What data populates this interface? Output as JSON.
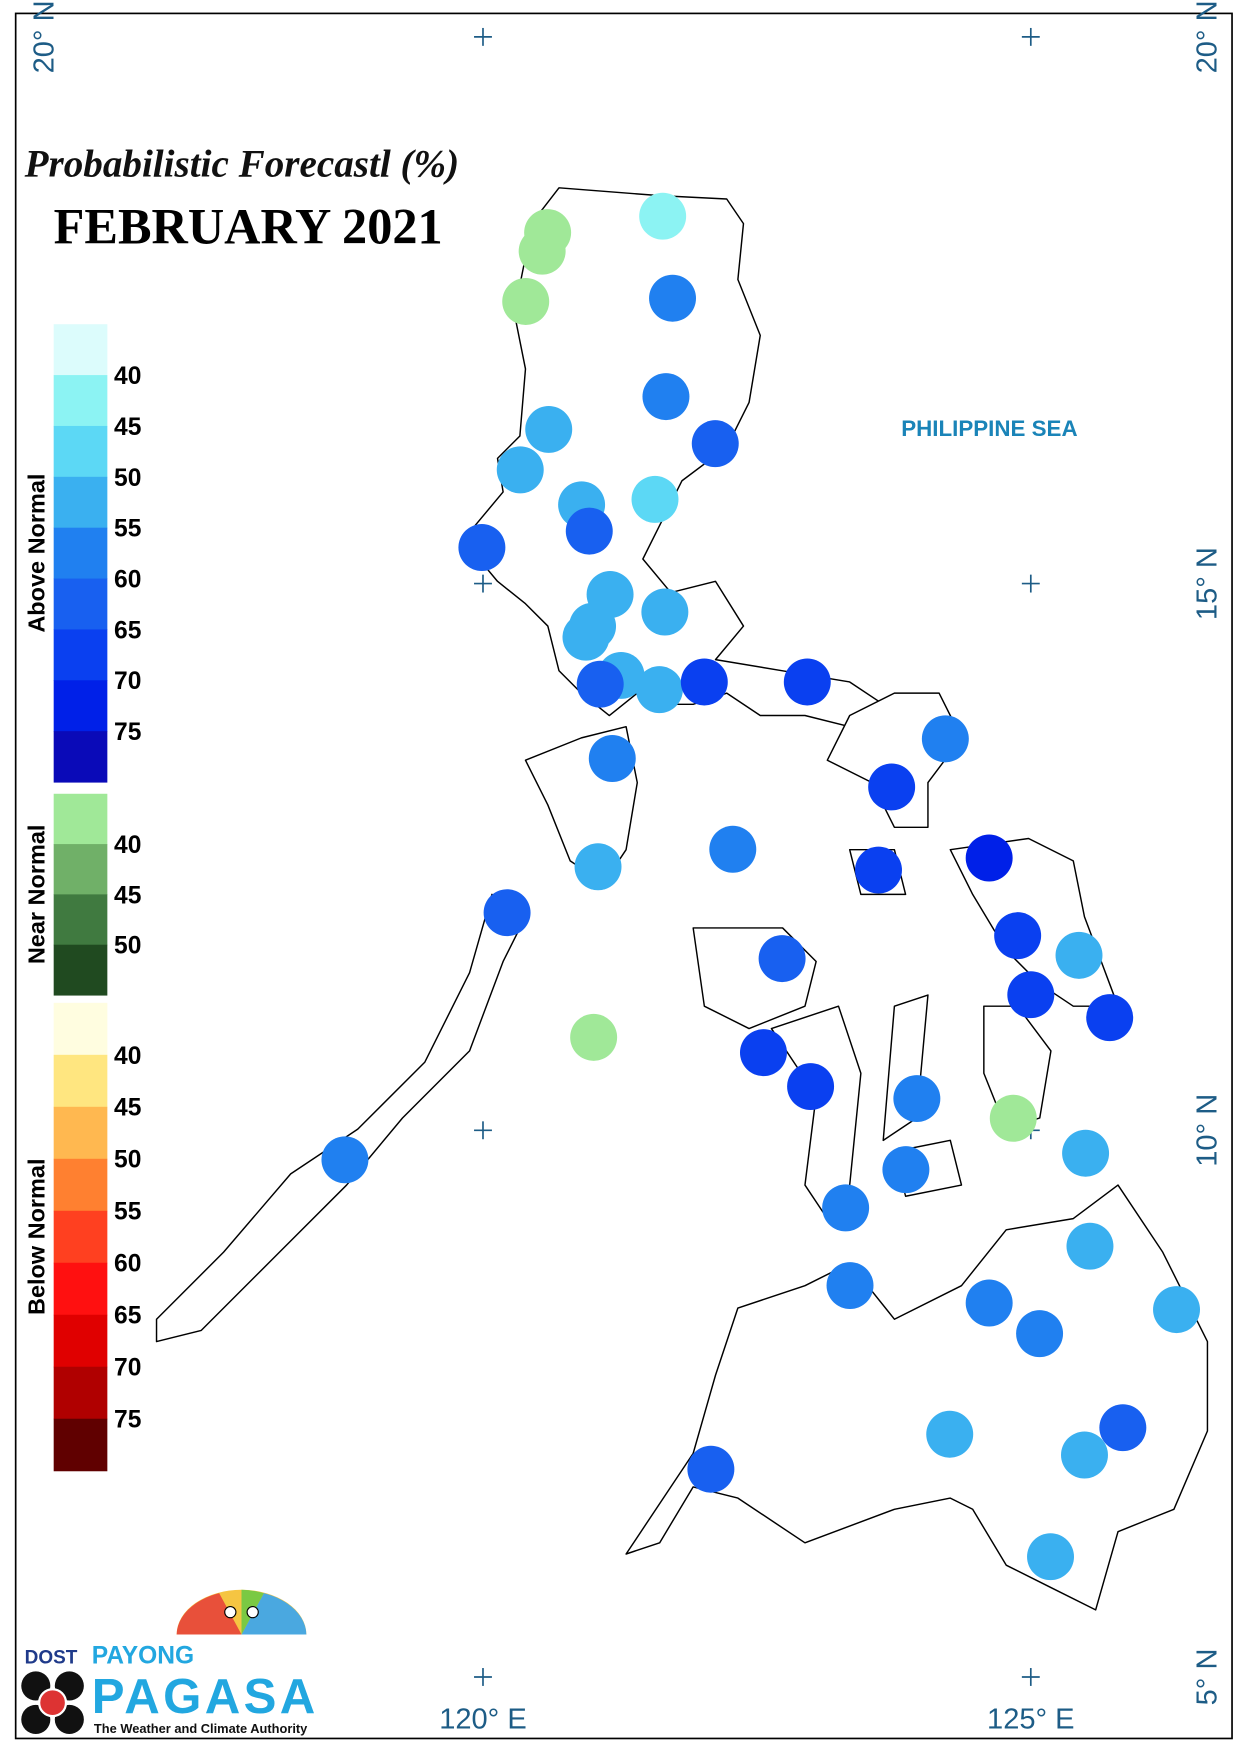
{
  "map": {
    "title": "Probabilistic Forecastl (%)",
    "subtitle": "FEBRUARY 2021",
    "sea_label": "PHILIPPINE SEA",
    "lat_ticks": [
      {
        "value": 20,
        "label": "20° N"
      },
      {
        "value": 15,
        "label": "15° N"
      },
      {
        "value": 10,
        "label": "10° N"
      },
      {
        "value": 5,
        "label": "5° N"
      }
    ],
    "lon_ticks": [
      {
        "value": 120,
        "label": "120° E"
      },
      {
        "value": 125,
        "label": "125° E"
      }
    ],
    "legend": [
      {
        "name": "Above Normal",
        "ticks": [
          40,
          45,
          50,
          55,
          60,
          65,
          70,
          75
        ],
        "colors": [
          "#dcfcfc",
          "#8cf3f3",
          "#5cd8f5",
          "#3ab0f0",
          "#2080f0",
          "#1860f0",
          "#0a40f0",
          "#0020e8",
          "#0a0ab8"
        ]
      },
      {
        "name": "Near Normal",
        "ticks": [
          40,
          45,
          50
        ],
        "colors": [
          "#a0e898",
          "#70b068",
          "#407a40",
          "#204a20"
        ]
      },
      {
        "name": "Below Normal",
        "ticks": [
          40,
          45,
          50,
          55,
          60,
          65,
          70,
          75
        ],
        "colors": [
          "#fffde0",
          "#ffe680",
          "#ffb850",
          "#ff8030",
          "#ff4020",
          "#ff1010",
          "#e00000",
          "#b00000",
          "#600000"
        ]
      }
    ],
    "stations": [
      {
        "lon": 121.64,
        "lat": 18.36,
        "category": "Above Normal",
        "value": 42
      },
      {
        "lon": 120.59,
        "lat": 18.21,
        "category": "Near Normal",
        "value": 38
      },
      {
        "lon": 120.54,
        "lat": 18.04,
        "category": "Near Normal",
        "value": 38
      },
      {
        "lon": 120.39,
        "lat": 17.58,
        "category": "Near Normal",
        "value": 38
      },
      {
        "lon": 121.73,
        "lat": 17.61,
        "category": "Above Normal",
        "value": 57
      },
      {
        "lon": 121.67,
        "lat": 16.71,
        "category": "Above Normal",
        "value": 57
      },
      {
        "lon": 122.12,
        "lat": 16.28,
        "category": "Above Normal",
        "value": 62
      },
      {
        "lon": 120.6,
        "lat": 16.41,
        "category": "Above Normal",
        "value": 52
      },
      {
        "lon": 120.34,
        "lat": 16.04,
        "category": "Above Normal",
        "value": 52
      },
      {
        "lon": 120.9,
        "lat": 15.72,
        "category": "Above Normal",
        "value": 52
      },
      {
        "lon": 121.57,
        "lat": 15.77,
        "category": "Above Normal",
        "value": 47
      },
      {
        "lon": 120.97,
        "lat": 15.48,
        "category": "Above Normal",
        "value": 62
      },
      {
        "lon": 119.99,
        "lat": 15.33,
        "category": "Above Normal",
        "value": 62
      },
      {
        "lon": 121.16,
        "lat": 14.9,
        "category": "Above Normal",
        "value": 52
      },
      {
        "lon": 121.66,
        "lat": 14.74,
        "category": "Above Normal",
        "value": 52
      },
      {
        "lon": 121.0,
        "lat": 14.61,
        "category": "Above Normal",
        "value": 52
      },
      {
        "lon": 120.94,
        "lat": 14.51,
        "category": "Above Normal",
        "value": 52
      },
      {
        "lon": 121.26,
        "lat": 14.16,
        "category": "Above Normal",
        "value": 52
      },
      {
        "lon": 121.07,
        "lat": 14.08,
        "category": "Above Normal",
        "value": 62
      },
      {
        "lon": 121.61,
        "lat": 14.03,
        "category": "Above Normal",
        "value": 52
      },
      {
        "lon": 122.02,
        "lat": 14.1,
        "category": "Above Normal",
        "value": 67
      },
      {
        "lon": 122.96,
        "lat": 14.1,
        "category": "Above Normal",
        "value": 67
      },
      {
        "lon": 124.22,
        "lat": 13.58,
        "category": "Above Normal",
        "value": 57
      },
      {
        "lon": 123.73,
        "lat": 13.14,
        "category": "Above Normal",
        "value": 67
      },
      {
        "lon": 121.18,
        "lat": 13.4,
        "category": "Above Normal",
        "value": 57
      },
      {
        "lon": 121.05,
        "lat": 12.41,
        "category": "Above Normal",
        "value": 52
      },
      {
        "lon": 122.28,
        "lat": 12.57,
        "category": "Above Normal",
        "value": 57
      },
      {
        "lon": 123.61,
        "lat": 12.38,
        "category": "Above Normal",
        "value": 67
      },
      {
        "lon": 124.62,
        "lat": 12.49,
        "category": "Above Normal",
        "value": 72
      },
      {
        "lon": 120.22,
        "lat": 11.99,
        "category": "Above Normal",
        "value": 62
      },
      {
        "lon": 124.88,
        "lat": 11.78,
        "category": "Above Normal",
        "value": 67
      },
      {
        "lon": 125.44,
        "lat": 11.6,
        "category": "Above Normal",
        "value": 52
      },
      {
        "lon": 122.73,
        "lat": 11.57,
        "category": "Above Normal",
        "value": 62
      },
      {
        "lon": 125.0,
        "lat": 11.24,
        "category": "Above Normal",
        "value": 67
      },
      {
        "lon": 125.72,
        "lat": 11.03,
        "category": "Above Normal",
        "value": 67
      },
      {
        "lon": 121.01,
        "lat": 10.85,
        "category": "Near Normal",
        "value": 38
      },
      {
        "lon": 122.56,
        "lat": 10.71,
        "category": "Above Normal",
        "value": 67
      },
      {
        "lon": 122.99,
        "lat": 10.4,
        "category": "Above Normal",
        "value": 67
      },
      {
        "lon": 123.96,
        "lat": 10.29,
        "category": "Above Normal",
        "value": 57
      },
      {
        "lon": 124.84,
        "lat": 10.11,
        "category": "Near Normal",
        "value": 38
      },
      {
        "lon": 118.74,
        "lat": 9.73,
        "category": "Above Normal",
        "value": 57
      },
      {
        "lon": 125.5,
        "lat": 9.79,
        "category": "Above Normal",
        "value": 52
      },
      {
        "lon": 123.86,
        "lat": 9.64,
        "category": "Above Normal",
        "value": 57
      },
      {
        "lon": 123.31,
        "lat": 9.29,
        "category": "Above Normal",
        "value": 57
      },
      {
        "lon": 125.54,
        "lat": 8.94,
        "category": "Above Normal",
        "value": 52
      },
      {
        "lon": 123.35,
        "lat": 8.58,
        "category": "Above Normal",
        "value": 57
      },
      {
        "lon": 124.62,
        "lat": 8.42,
        "category": "Above Normal",
        "value": 57
      },
      {
        "lon": 125.08,
        "lat": 8.14,
        "category": "Above Normal",
        "value": 57
      },
      {
        "lon": 126.33,
        "lat": 8.36,
        "category": "Above Normal",
        "value": 52
      },
      {
        "lon": 124.26,
        "lat": 7.22,
        "category": "Above Normal",
        "value": 52
      },
      {
        "lon": 125.84,
        "lat": 7.28,
        "category": "Above Normal",
        "value": 62
      },
      {
        "lon": 125.49,
        "lat": 7.03,
        "category": "Above Normal",
        "value": 52
      },
      {
        "lon": 122.08,
        "lat": 6.9,
        "category": "Above Normal",
        "value": 62
      },
      {
        "lon": 125.18,
        "lat": 6.1,
        "category": "Above Normal",
        "value": 52
      }
    ]
  },
  "logo": {
    "agency": "DOST",
    "brand_top": "PAYONG",
    "brand_main": "PAGASA",
    "tagline": "The Weather and Climate Authority"
  }
}
